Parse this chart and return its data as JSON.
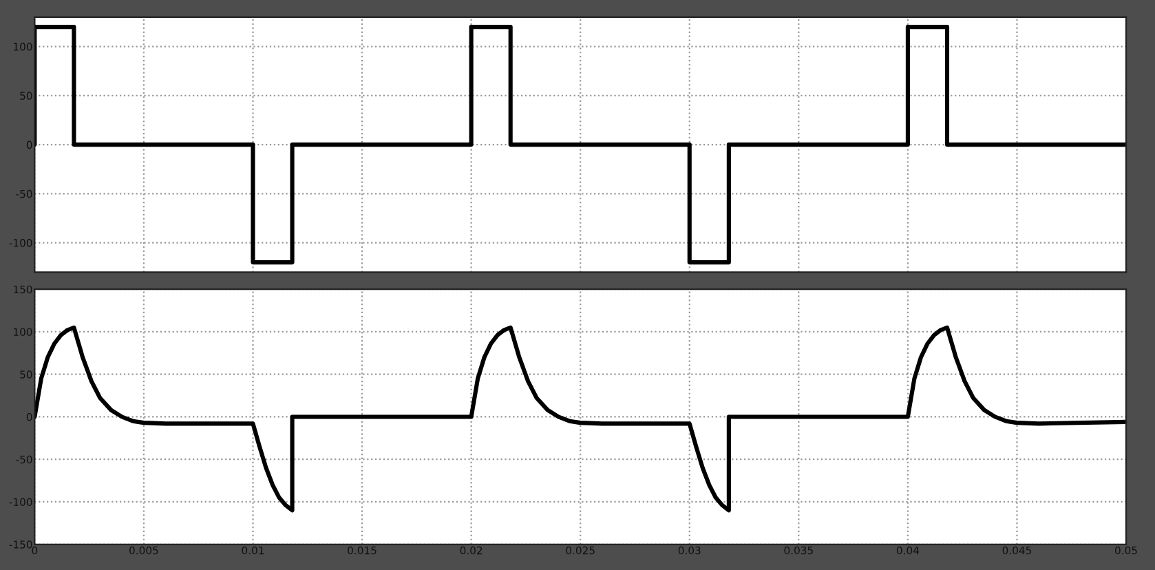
{
  "chart_data": [
    {
      "type": "line",
      "xlim": [
        0,
        0.05
      ],
      "ylim": [
        -130,
        130
      ],
      "yticks": [
        -100,
        -50,
        0,
        50,
        100
      ],
      "xticks": [
        0,
        0.005,
        0.01,
        0.015,
        0.02,
        0.025,
        0.03,
        0.035,
        0.04,
        0.045,
        0.05
      ],
      "tick_labels": "y",
      "grid": true,
      "series": [
        {
          "color": "#000000",
          "x": [
            0,
            0,
            0.0018,
            0.0018,
            0.01,
            0.01,
            0.0118,
            0.0118,
            0.02,
            0.02,
            0.0218,
            0.0218,
            0.03,
            0.03,
            0.0318,
            0.0318,
            0.04,
            0.04,
            0.0418,
            0.0418,
            0.05
          ],
          "values": [
            0,
            120,
            120,
            0,
            0,
            -120,
            -120,
            0,
            0,
            120,
            120,
            0,
            0,
            -120,
            -120,
            0,
            0,
            120,
            120,
            0,
            0
          ]
        }
      ]
    },
    {
      "type": "line",
      "xlim": [
        0,
        0.05
      ],
      "ylim": [
        -150,
        150
      ],
      "yticks": [
        -150,
        -100,
        -50,
        0,
        50,
        100,
        150
      ],
      "xticks": [
        0,
        0.005,
        0.01,
        0.015,
        0.02,
        0.025,
        0.03,
        0.035,
        0.04,
        0.045,
        0.05
      ],
      "grid": true,
      "series": [
        {
          "color": "#000000",
          "x": [
            0,
            0.0003,
            0.0006,
            0.0009,
            0.0012,
            0.0015,
            0.0018,
            0.0022,
            0.0026,
            0.003,
            0.0035,
            0.004,
            0.0045,
            0.005,
            0.006,
            0.01,
            0.0103,
            0.0106,
            0.0109,
            0.0112,
            0.0115,
            0.0118,
            0.0118,
            0.02,
            0.0203,
            0.0206,
            0.0209,
            0.0212,
            0.0215,
            0.0218,
            0.0222,
            0.0226,
            0.023,
            0.0235,
            0.024,
            0.0245,
            0.025,
            0.026,
            0.03,
            0.0303,
            0.0306,
            0.0309,
            0.0312,
            0.0315,
            0.0318,
            0.0318,
            0.04,
            0.0403,
            0.0406,
            0.0409,
            0.0412,
            0.0415,
            0.0418,
            0.0422,
            0.0426,
            0.043,
            0.0435,
            0.044,
            0.0445,
            0.045,
            0.046,
            0.05
          ],
          "values": [
            0,
            45,
            70,
            86,
            96,
            102,
            105,
            70,
            42,
            22,
            8,
            0,
            -5,
            -7,
            -8,
            -8,
            -35,
            -60,
            -80,
            -95,
            -104,
            -110,
            0,
            0,
            45,
            70,
            86,
            96,
            102,
            105,
            70,
            42,
            22,
            8,
            0,
            -5,
            -7,
            -8,
            -8,
            -35,
            -60,
            -80,
            -95,
            -104,
            -110,
            0,
            0,
            45,
            70,
            86,
            96,
            102,
            105,
            70,
            42,
            22,
            8,
            0,
            -5,
            -7,
            -8,
            -6
          ]
        }
      ]
    }
  ]
}
